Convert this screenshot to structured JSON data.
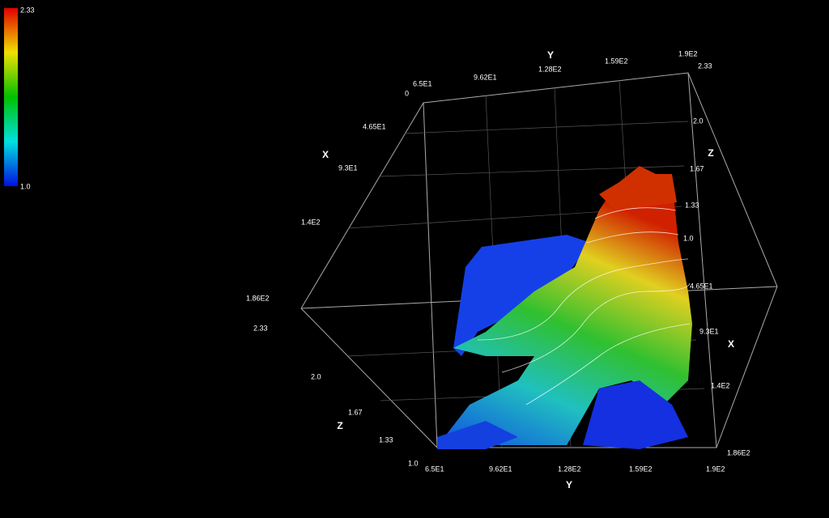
{
  "colorbar": {
    "max": "2.33",
    "min": "1.0"
  },
  "axes": {
    "x_left": {
      "title": "X",
      "ticks": [
        "0",
        "4.65E1",
        "9.3E1",
        "1.4E2",
        "1.86E2"
      ]
    },
    "y_top": {
      "title": "Y",
      "ticks": [
        "6.5E1",
        "9.62E1",
        "1.28E2",
        "1.59E2",
        "1.9E2"
      ]
    },
    "z_right": {
      "title": "Z",
      "ticks": [
        "2.33",
        "2.0",
        "1.67",
        "1.33",
        "1.0"
      ]
    },
    "x_right": {
      "title": "X",
      "ticks": [
        "4.65E1",
        "9.3E1",
        "1.4E2",
        "1.86E2"
      ]
    },
    "z_left": {
      "title": "Z",
      "ticks": [
        "2.33",
        "2.0",
        "1.67",
        "1.33",
        "1.0"
      ]
    },
    "y_bottom": {
      "title": "Y",
      "ticks": [
        "6.5E1",
        "9.62E1",
        "1.28E2",
        "1.59E2",
        "1.9E2"
      ]
    }
  }
}
